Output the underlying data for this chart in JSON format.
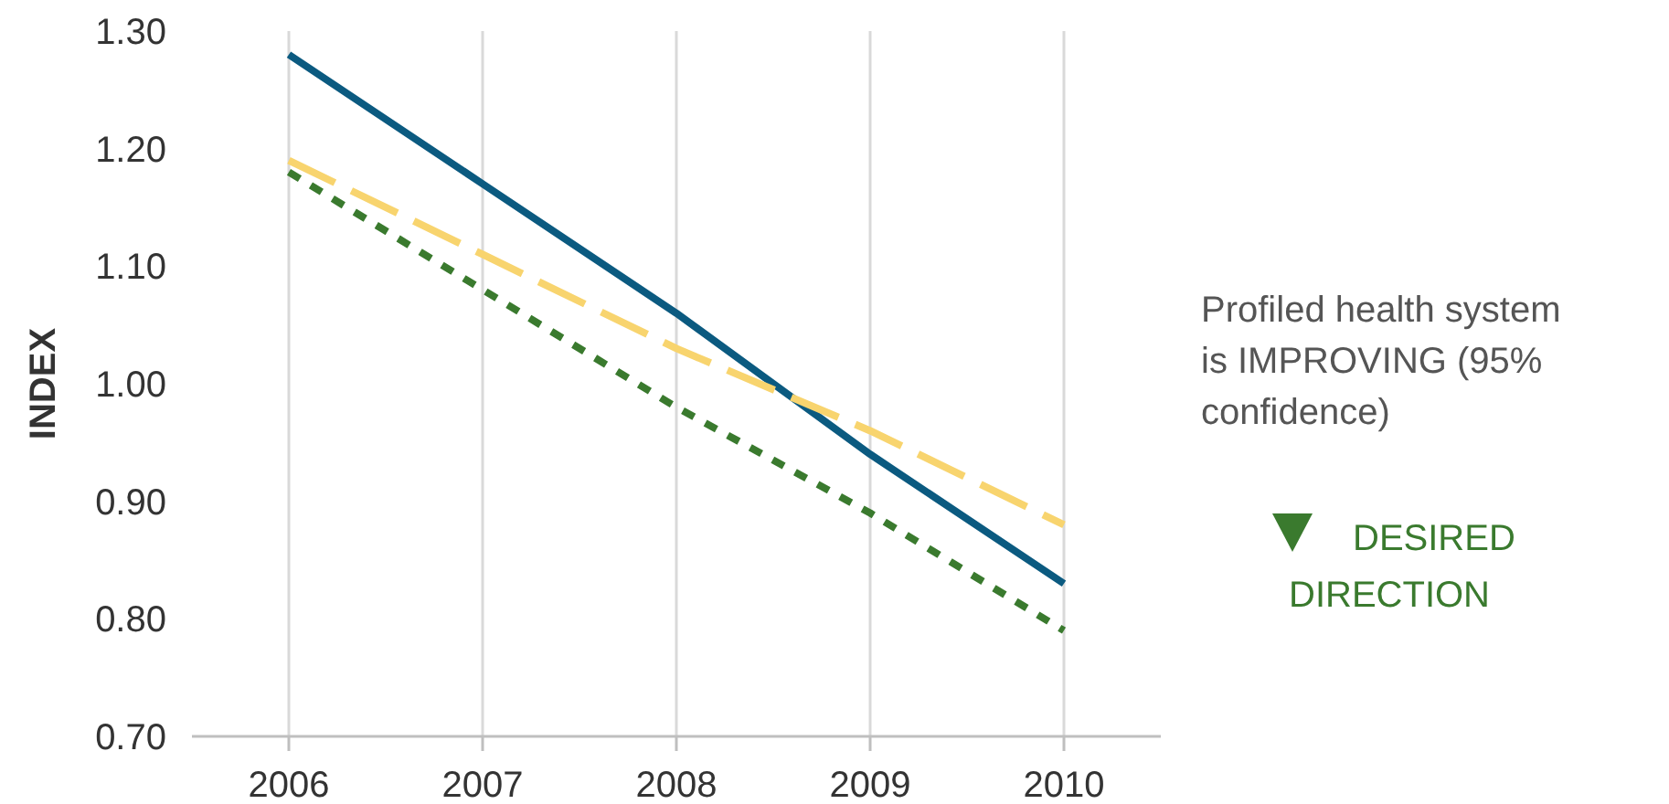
{
  "chart_data": {
    "type": "line",
    "ylabel": "INDEX",
    "x": [
      2006,
      2007,
      2008,
      2009,
      2010
    ],
    "xlim": [
      2005.5,
      2010.5
    ],
    "xticks": [
      2006,
      2007,
      2008,
      2009,
      2010
    ],
    "ylim": [
      0.7,
      1.3
    ],
    "yticks": [
      {
        "value": 0.7,
        "label": "0.70"
      },
      {
        "value": 0.8,
        "label": "0.80"
      },
      {
        "value": 0.9,
        "label": "0.90"
      },
      {
        "value": 1.0,
        "label": "1.00"
      },
      {
        "value": 1.1,
        "label": "1.10"
      },
      {
        "value": 1.2,
        "label": "1.20"
      },
      {
        "value": 1.3,
        "label": "1.30"
      }
    ],
    "grid": "x",
    "marker": "none",
    "series": [
      {
        "color": "#0b5a80",
        "line_style": "solid",
        "values": [
          1.28,
          1.17,
          1.06,
          0.94,
          0.83
        ]
      },
      {
        "color": "#f8d46e",
        "line_style": "dashed",
        "values": [
          1.19,
          1.11,
          1.03,
          0.96,
          0.88
        ]
      },
      {
        "color": "#3a7a2e",
        "line_style": "dotted",
        "values": [
          1.18,
          1.08,
          0.98,
          0.89,
          0.79
        ]
      }
    ],
    "annotations": [
      "Profiled health system is IMPROVING (95% confidence)",
      "DESIRED DIRECTION"
    ]
  }
}
